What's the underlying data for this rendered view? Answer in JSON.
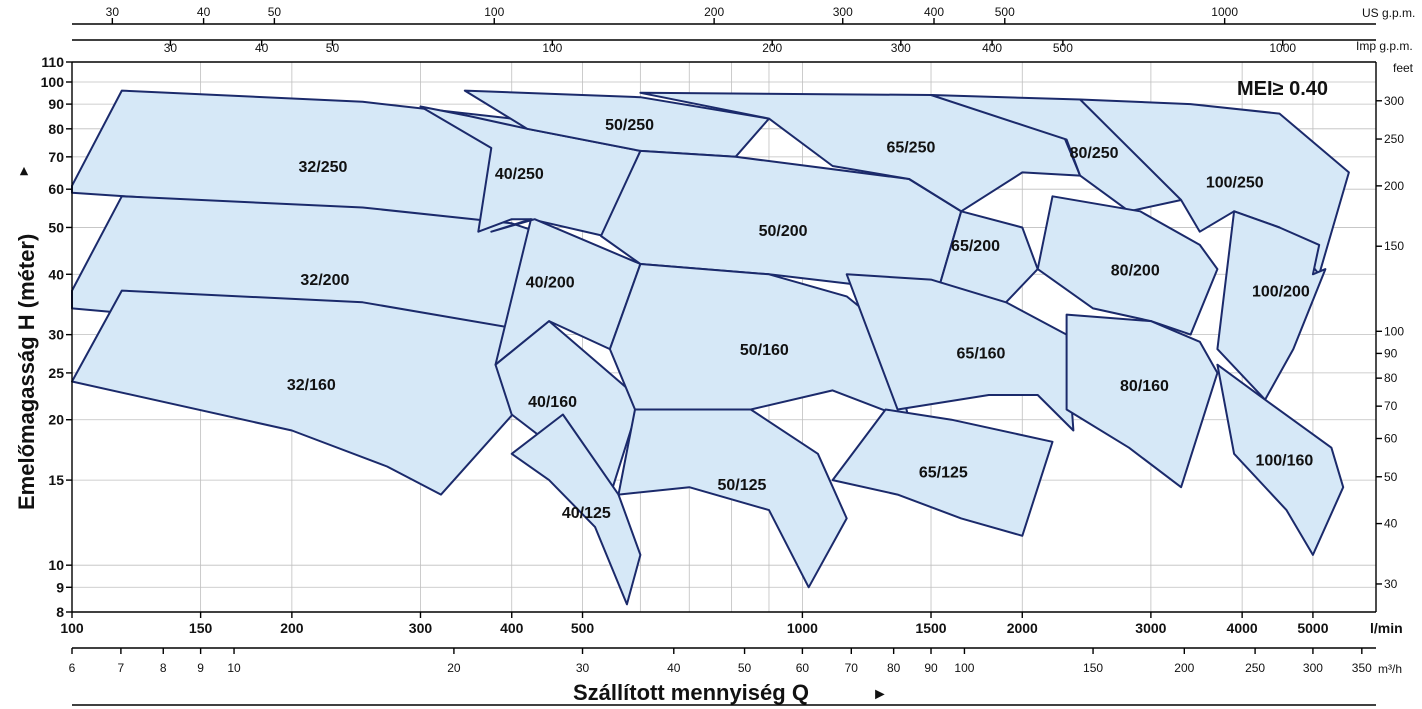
{
  "chart_data": {
    "type": "area",
    "title": "",
    "annotation": "MEI≥ 0.40",
    "xlabel": "Szállított mennyiség  Q",
    "ylabel": "Emelőmagasság H  (méter)",
    "x_scale": "log",
    "y_scale": "log",
    "x_unit_primary": "l/min",
    "xlim_lmin": [
      100,
      6100
    ],
    "ylim_m": [
      8,
      110
    ],
    "x_ticks_lmin": [
      "100",
      "150",
      "200",
      "300",
      "400",
      "500",
      "1000",
      "1500",
      "2000",
      "3000",
      "4000",
      "5000"
    ],
    "x_unit_m3h": "m³/h",
    "x_ticks_m3h": [
      "6",
      "7",
      "8",
      "9",
      "10",
      "20",
      "30",
      "40",
      "50",
      "60",
      "70",
      "80",
      "90",
      "100",
      "150",
      "200",
      "250",
      "300",
      "350"
    ],
    "x_unit_usgpm": "US g.p.m.",
    "x_ticks_usgpm": [
      "30",
      "40",
      "50",
      "100",
      "200",
      "300",
      "400",
      "500",
      "1000"
    ],
    "x_unit_impgpm": "Imp g.p.m.",
    "x_ticks_impgpm": [
      "30",
      "40",
      "50",
      "100",
      "200",
      "300",
      "400",
      "500",
      "1000"
    ],
    "y_ticks_m": [
      "8",
      "9",
      "10",
      "15",
      "20",
      "25",
      "30",
      "40",
      "50",
      "60",
      "70",
      "80",
      "90",
      "100",
      "110"
    ],
    "y_unit_feet": "feet",
    "y_ticks_feet": [
      "30",
      "40",
      "50",
      "60",
      "70",
      "80",
      "90",
      "100",
      "150",
      "200",
      "250",
      "300"
    ],
    "series": [
      {
        "name": "32/250",
        "points": [
          [
            100,
            61
          ],
          [
            117,
            96
          ],
          [
            250,
            91
          ],
          [
            400,
            84
          ],
          [
            470,
            73
          ],
          [
            375,
            49
          ],
          [
            300,
            52
          ],
          [
            200,
            55
          ],
          [
            100,
            59
          ]
        ]
      },
      {
        "name": "32/200",
        "points": [
          [
            100,
            37
          ],
          [
            117,
            58
          ],
          [
            250,
            55
          ],
          [
            400,
            51
          ],
          [
            490,
            46
          ],
          [
            380,
            26
          ],
          [
            300,
            28.5
          ],
          [
            200,
            31
          ],
          [
            100,
            34
          ]
        ]
      },
      {
        "name": "32/160",
        "points": [
          [
            100,
            24
          ],
          [
            117,
            37
          ],
          [
            250,
            35
          ],
          [
            400,
            31
          ],
          [
            440,
            24
          ],
          [
            320,
            14
          ],
          [
            270,
            16
          ],
          [
            200,
            19
          ],
          [
            100,
            24
          ]
        ]
      },
      {
        "name": "40/250",
        "points": [
          [
            300,
            89
          ],
          [
            350,
            85
          ],
          [
            420,
            80
          ],
          [
            600,
            72
          ],
          [
            535,
            48
          ],
          [
            425,
            52
          ],
          [
            400,
            52
          ],
          [
            360,
            49
          ],
          [
            375,
            73
          ]
        ]
      },
      {
        "name": "40/200",
        "points": [
          [
            375,
            49
          ],
          [
            430,
            52
          ],
          [
            600,
            42
          ],
          [
            545,
            28
          ],
          [
            450,
            32
          ],
          [
            380,
            26
          ],
          [
            425,
            52
          ]
        ]
      },
      {
        "name": "40/160",
        "points": [
          [
            380,
            26
          ],
          [
            450,
            32
          ],
          [
            600,
            22
          ],
          [
            550,
            14.5
          ],
          [
            470,
            17
          ],
          [
            400,
            20.5
          ],
          [
            380,
            26
          ]
        ]
      },
      {
        "name": "40/125",
        "points": [
          [
            400,
            17
          ],
          [
            470,
            20.5
          ],
          [
            560,
            14
          ],
          [
            600,
            10.5
          ],
          [
            575,
            8.3
          ],
          [
            520,
            12
          ],
          [
            450,
            15
          ]
        ]
      },
      {
        "name": "50/250",
        "points": [
          [
            345,
            96
          ],
          [
            600,
            93
          ],
          [
            900,
            84
          ],
          [
            810,
            70
          ],
          [
            600,
            72
          ],
          [
            420,
            80
          ]
        ]
      },
      {
        "name": "50/200",
        "points": [
          [
            600,
            72
          ],
          [
            810,
            70
          ],
          [
            1400,
            63
          ],
          [
            1650,
            54
          ],
          [
            1500,
            33
          ],
          [
            1200,
            38
          ],
          [
            900,
            40
          ],
          [
            600,
            42
          ],
          [
            530,
            48
          ]
        ]
      },
      {
        "name": "50/160",
        "points": [
          [
            600,
            42
          ],
          [
            900,
            40
          ],
          [
            1150,
            36
          ],
          [
            1300,
            31
          ],
          [
            1400,
            20
          ],
          [
            1100,
            23
          ],
          [
            850,
            21
          ],
          [
            590,
            21
          ],
          [
            545,
            28
          ]
        ]
      },
      {
        "name": "50/125",
        "points": [
          [
            590,
            21
          ],
          [
            850,
            21
          ],
          [
            1050,
            17
          ],
          [
            1150,
            12.5
          ],
          [
            1020,
            9
          ],
          [
            900,
            13
          ],
          [
            700,
            14.5
          ],
          [
            560,
            14
          ]
        ]
      },
      {
        "name": "65/250",
        "points": [
          [
            600,
            95
          ],
          [
            1500,
            94
          ],
          [
            2200,
            88
          ],
          [
            2400,
            64
          ],
          [
            2000,
            65
          ],
          [
            1650,
            54
          ],
          [
            1400,
            63
          ],
          [
            1100,
            67
          ],
          [
            900,
            84
          ]
        ]
      },
      {
        "name": "65/200",
        "points": [
          [
            1400,
            63
          ],
          [
            1650,
            54
          ],
          [
            2000,
            50
          ],
          [
            2100,
            41
          ],
          [
            1900,
            35
          ],
          [
            1500,
            33
          ],
          [
            1650,
            54
          ]
        ]
      },
      {
        "name": "65/160",
        "points": [
          [
            1150,
            40
          ],
          [
            1500,
            39
          ],
          [
            1900,
            35
          ],
          [
            2300,
            30
          ],
          [
            2350,
            19
          ],
          [
            2100,
            22.5
          ],
          [
            1800,
            22.5
          ],
          [
            1350,
            21
          ]
        ]
      },
      {
        "name": "65/125",
        "points": [
          [
            1300,
            21
          ],
          [
            1600,
            20
          ],
          [
            2200,
            18
          ],
          [
            2000,
            11.5
          ],
          [
            1650,
            12.5
          ],
          [
            1350,
            14
          ],
          [
            1100,
            15
          ]
        ]
      },
      {
        "name": "80/250",
        "points": [
          [
            1500,
            94
          ],
          [
            2400,
            92
          ],
          [
            3400,
            75
          ],
          [
            3300,
            57
          ],
          [
            2800,
            54
          ],
          [
            2400,
            64
          ],
          [
            2300,
            76
          ]
        ]
      },
      {
        "name": "80/200",
        "points": [
          [
            2200,
            58
          ],
          [
            2900,
            54
          ],
          [
            3500,
            46
          ],
          [
            3700,
            41
          ],
          [
            3400,
            30
          ],
          [
            3000,
            32
          ],
          [
            2500,
            34
          ],
          [
            2100,
            41
          ]
        ]
      },
      {
        "name": "80/160",
        "points": [
          [
            2300,
            33
          ],
          [
            3000,
            32
          ],
          [
            3500,
            29
          ],
          [
            3700,
            25
          ],
          [
            3300,
            14.5
          ],
          [
            2800,
            17.5
          ],
          [
            2300,
            21
          ]
        ]
      },
      {
        "name": "100/250",
        "points": [
          [
            2400,
            92
          ],
          [
            3400,
            90
          ],
          [
            4500,
            86
          ],
          [
            5600,
            65
          ],
          [
            5100,
            40
          ],
          [
            4500,
            50
          ],
          [
            3900,
            54
          ],
          [
            3500,
            49
          ],
          [
            3300,
            57
          ]
        ]
      },
      {
        "name": "100/200",
        "points": [
          [
            3900,
            54
          ],
          [
            4500,
            50
          ],
          [
            5100,
            46
          ],
          [
            5000,
            40
          ],
          [
            5200,
            41
          ],
          [
            4700,
            28
          ],
          [
            4300,
            22
          ],
          [
            3700,
            28
          ]
        ]
      },
      {
        "name": "100/160",
        "points": [
          [
            3700,
            26
          ],
          [
            4300,
            22
          ],
          [
            5300,
            17.5
          ],
          [
            5500,
            14.5
          ],
          [
            5000,
            10.5
          ],
          [
            4600,
            13
          ],
          [
            3900,
            17
          ]
        ]
      }
    ]
  }
}
